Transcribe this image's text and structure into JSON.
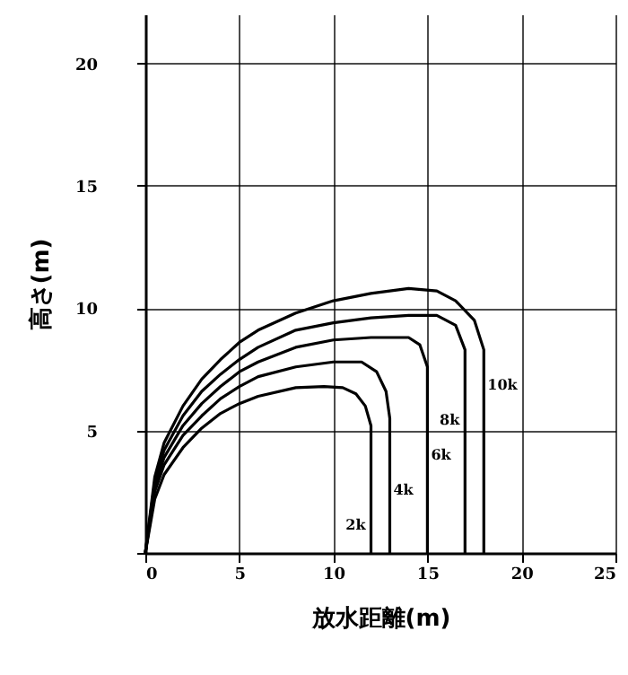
{
  "chart_data": {
    "type": "line",
    "xlabel": "放水距離(m)",
    "ylabel": "高さ(m)",
    "xlim": [
      0,
      25
    ],
    "ylim": [
      0,
      22
    ],
    "xticks": [
      0,
      5,
      10,
      15,
      20,
      25
    ],
    "yticks": [
      {
        "value": 0,
        "label": null
      },
      5,
      10,
      15,
      20
    ],
    "grid": true,
    "legend": false,
    "marker": "none",
    "line_style": "solid",
    "series": [
      {
        "name": "2k",
        "color": "#000000",
        "x": [
          0,
          0.5,
          1,
          2,
          3,
          4,
          5,
          6,
          8,
          9.5,
          10.5,
          11.2,
          11.7,
          12,
          12
        ],
        "values": [
          0,
          2.2,
          3.2,
          4.3,
          5.1,
          5.7,
          6.1,
          6.4,
          6.75,
          6.8,
          6.75,
          6.5,
          6.0,
          5.2,
          0
        ]
      },
      {
        "name": "4k",
        "color": "#000000",
        "x": [
          0,
          0.5,
          1,
          2,
          3,
          4,
          5,
          6,
          8,
          10,
          11.5,
          12.3,
          12.8,
          13,
          13
        ],
        "values": [
          0,
          2.5,
          3.6,
          4.8,
          5.6,
          6.3,
          6.8,
          7.2,
          7.6,
          7.8,
          7.8,
          7.4,
          6.6,
          5.5,
          0
        ]
      },
      {
        "name": "6k",
        "color": "#000000",
        "x": [
          0,
          0.5,
          1,
          2,
          3,
          4,
          5,
          6,
          8,
          10,
          12,
          14,
          14.6,
          15,
          15
        ],
        "values": [
          0,
          2.7,
          3.9,
          5.2,
          6.1,
          6.8,
          7.4,
          7.8,
          8.4,
          8.7,
          8.8,
          8.8,
          8.5,
          7.6,
          0
        ]
      },
      {
        "name": "8k",
        "color": "#000000",
        "x": [
          0,
          0.5,
          1,
          2,
          3,
          4,
          5,
          6,
          8,
          10,
          12,
          14,
          15.5,
          16.5,
          17,
          17
        ],
        "values": [
          0,
          2.9,
          4.2,
          5.6,
          6.6,
          7.3,
          7.9,
          8.4,
          9.1,
          9.4,
          9.6,
          9.7,
          9.7,
          9.3,
          8.3,
          0
        ]
      },
      {
        "name": "10k",
        "color": "#000000",
        "x": [
          0,
          0.5,
          1,
          2,
          3,
          4,
          5,
          6,
          8,
          10,
          12,
          14,
          15.5,
          16.5,
          17.5,
          18,
          18
        ],
        "values": [
          0,
          3.1,
          4.5,
          6.0,
          7.1,
          7.9,
          8.6,
          9.1,
          9.8,
          10.3,
          10.6,
          10.8,
          10.7,
          10.3,
          9.5,
          8.3,
          0
        ]
      }
    ]
  }
}
